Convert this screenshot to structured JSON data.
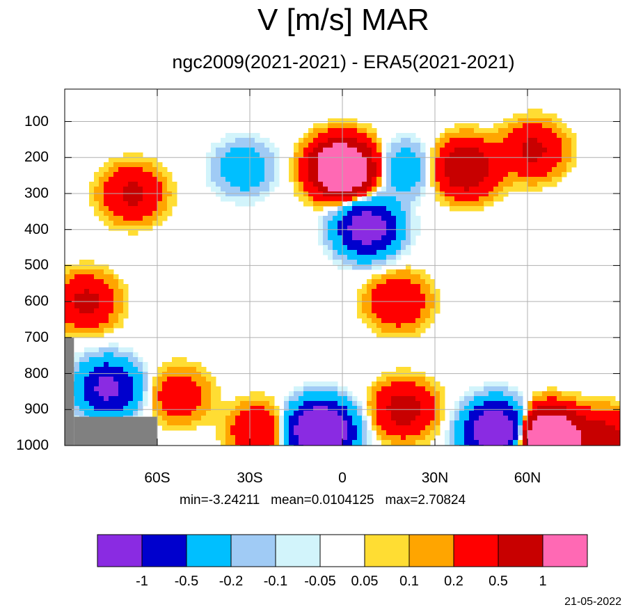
{
  "title": "V [m/s] MAR",
  "subtitle": "ngc2009(2021-2021) - ERA5(2021-2021)",
  "stats": {
    "min_label": "min=-3.24211",
    "mean_label": "mean=0.0104125",
    "max_label": "max=2.70824"
  },
  "date": "21-05-2022",
  "chart_data": {
    "type": "heatmap",
    "title": "V [m/s] MAR",
    "subtitle": "ngc2009(2021-2021) - ERA5(2021-2021)",
    "x_axis": {
      "range": [
        -90,
        90
      ],
      "ticks": [
        -60,
        -30,
        0,
        30,
        60
      ],
      "tick_labels": [
        "60S",
        "30S",
        "0",
        "30N",
        "60N"
      ]
    },
    "y_axis": {
      "range": [
        1000,
        10
      ],
      "reversed": true,
      "ticks": [
        100,
        200,
        300,
        400,
        500,
        600,
        700,
        800,
        900,
        1000
      ],
      "tick_labels": [
        "100",
        "200",
        "300",
        "400",
        "500",
        "600",
        "700",
        "800",
        "900",
        "1000"
      ]
    },
    "grid": true,
    "colorbar": {
      "levels": [
        -1,
        -0.5,
        -0.2,
        -0.1,
        -0.05,
        0.05,
        0.1,
        0.2,
        0.5,
        1
      ],
      "tick_labels": [
        "-1",
        "-0.5",
        "-0.2",
        "-0.1",
        "-0.05",
        "0.05",
        "0.1",
        "0.2",
        "0.5",
        "1"
      ],
      "colors": [
        "#8a2be2",
        "#0000cd",
        "#00bfff",
        "#a0cbf5",
        "#d2f4fb",
        "#ffffff",
        "#ffdd33",
        "#ffa500",
        "#ff0000",
        "#c80000",
        "#ff69b4"
      ]
    },
    "features": [
      {
        "x": 0,
        "y": 230,
        "value": 2.5
      },
      {
        "x": 40,
        "y": 230,
        "value": 1.0
      },
      {
        "x": 62,
        "y": 180,
        "value": 0.6
      },
      {
        "x": 8,
        "y": 395,
        "value": -1.5
      },
      {
        "x": -68,
        "y": 300,
        "value": 0.6
      },
      {
        "x": -83,
        "y": 600,
        "value": 0.6
      },
      {
        "x": -76,
        "y": 840,
        "value": -1.2
      },
      {
        "x": -53,
        "y": 860,
        "value": 0.4
      },
      {
        "x": -27,
        "y": 960,
        "value": 0.5
      },
      {
        "x": -7,
        "y": 960,
        "value": -2.5
      },
      {
        "x": 20,
        "y": 900,
        "value": 0.7
      },
      {
        "x": 50,
        "y": 960,
        "value": -2.0
      },
      {
        "x": 67,
        "y": 980,
        "value": 2.7
      },
      {
        "x": 85,
        "y": 980,
        "value": 0.7
      },
      {
        "x": 18,
        "y": 600,
        "value": 0.5
      },
      {
        "x": -32,
        "y": 230,
        "value": -0.4
      },
      {
        "x": 20,
        "y": 230,
        "value": -0.4
      }
    ],
    "missing": [
      {
        "x_range": [
          -90,
          -87
        ],
        "y_range": [
          700,
          1000
        ]
      },
      {
        "x_range": [
          -87,
          -60
        ],
        "y_range": [
          920,
          1000
        ]
      }
    ]
  }
}
